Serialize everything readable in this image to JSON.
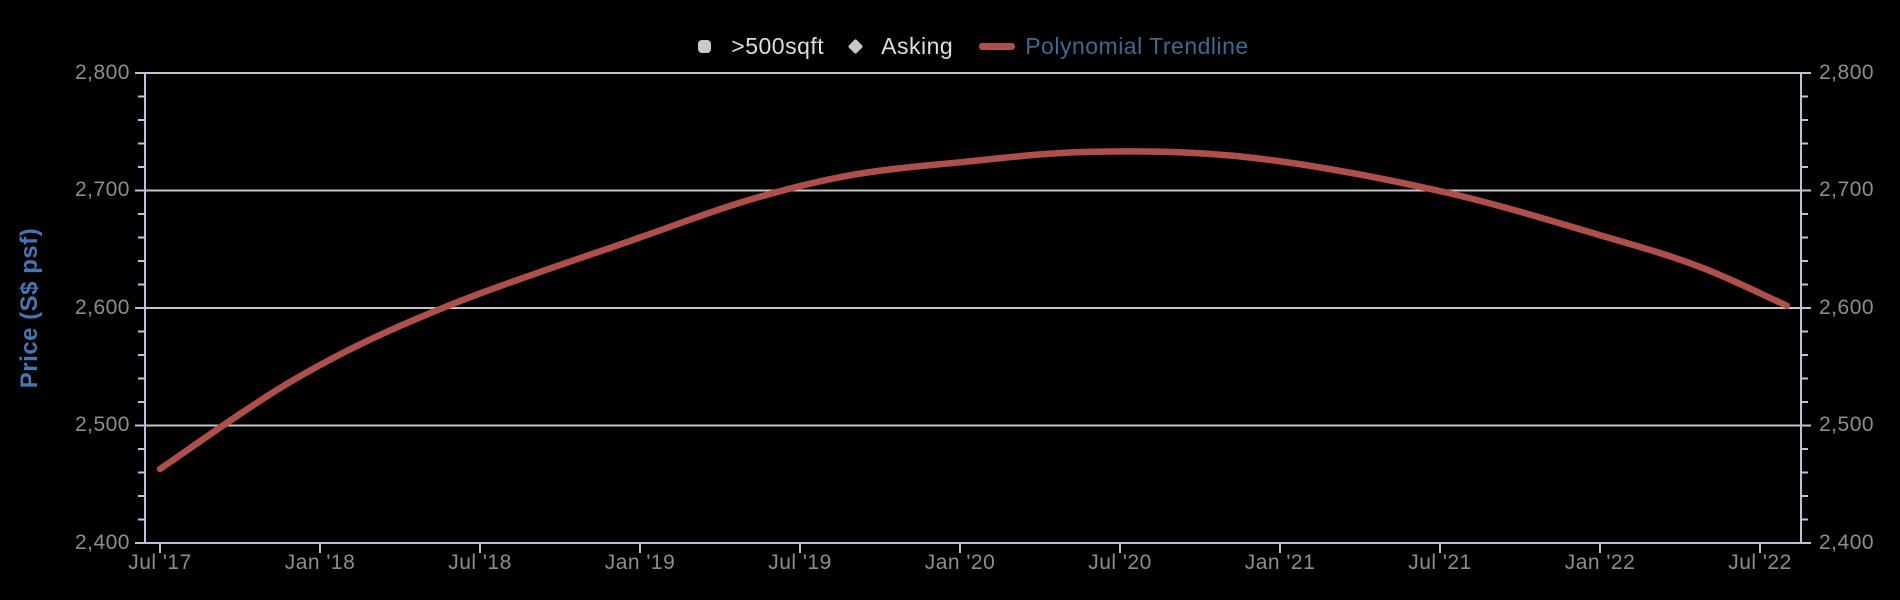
{
  "legend": {
    "items": [
      {
        "label": ">500sqft",
        "marker": "square"
      },
      {
        "label": "Asking",
        "marker": "diamond"
      },
      {
        "label": "Polynomial Trendline",
        "marker": "line"
      }
    ]
  },
  "y_axis": {
    "title": "Price (S$ psf)",
    "tick_labels": [
      "2,800",
      "2,700",
      "2,600",
      "2,500",
      "2,400"
    ],
    "min": 2400,
    "max": 2800,
    "major_step": 100,
    "minor_step": 20
  },
  "x_axis": {
    "tick_labels": [
      "Jul '17",
      "Jan '18",
      "Jul '18",
      "Jan '19",
      "Jul '19",
      "Jan '20",
      "Jul '20",
      "Jan '21",
      "Jul '21",
      "Jan '22",
      "Jul '22"
    ]
  },
  "chart_data": {
    "type": "line",
    "title": "",
    "xlabel": "",
    "ylabel": "Price (S$ psf)",
    "ylim": [
      2400,
      2800
    ],
    "x_range": [
      "Jul 2017",
      "Aug 2022"
    ],
    "grid": "horizontal-major-only",
    "legend_position": "top-center",
    "series": [
      {
        "name": ">500sqft",
        "type": "scatter",
        "marker": "square",
        "points": []
      },
      {
        "name": "Asking",
        "type": "scatter",
        "marker": "diamond",
        "points": []
      },
      {
        "name": "Polynomial Trendline",
        "type": "line",
        "color": "#ae4f4c",
        "x_months_from_jul17": [
          0,
          5.25,
          10.6,
          18,
          22.1,
          25.9,
          30,
          35,
          40.9,
          47.9,
          54,
          57.75,
          61
        ],
        "values": [
          2463,
          2542,
          2600,
          2660,
          2692,
          2713,
          2724,
          2733,
          2728,
          2700,
          2662,
          2635,
          2602
        ],
        "peak": {
          "x": "Jun 2020",
          "value": 2733
        },
        "start": {
          "x": "Jul 2017",
          "value": 2463
        },
        "end": {
          "x": "Aug 2022",
          "value": 2602
        }
      }
    ]
  },
  "colors": {
    "background": "#000000",
    "trendline": "#ae4f4c",
    "legend_text_light": "#dedede",
    "legend_text_trendline": "#3d6a8f",
    "axis_title": "#4577b5",
    "tick_label": "#8d8d8d",
    "axis_line": "#b6c3d8",
    "gridline": "#c4c4c4",
    "legend_marker": "#c9c9c9"
  }
}
